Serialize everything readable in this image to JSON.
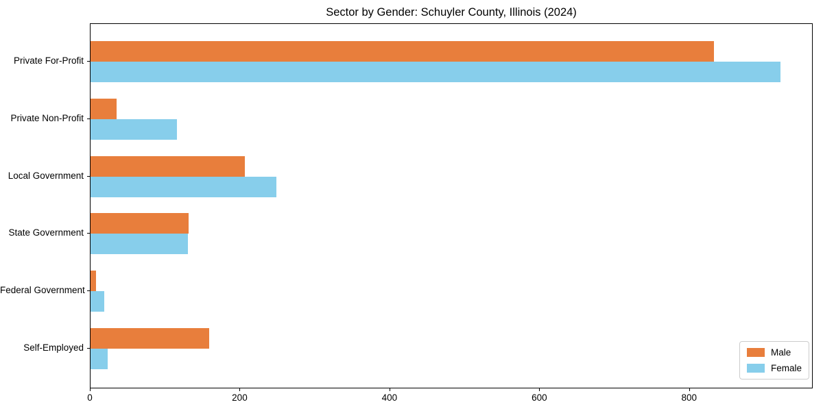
{
  "title": "Sector by Gender: Schuyler County, Illinois (2024)",
  "chart_data": {
    "type": "bar",
    "orientation": "horizontal",
    "title": "Sector by Gender: Schuyler County, Illinois (2024)",
    "xlabel": "",
    "ylabel": "",
    "categories": [
      "Private For-Profit",
      "Private Non-Profit",
      "Local Government",
      "State Government",
      "Federal Government",
      "Self-Employed"
    ],
    "series": [
      {
        "name": "Male",
        "color": "#e87e3c",
        "values": [
          832,
          35,
          206,
          131,
          7,
          158
        ]
      },
      {
        "name": "Female",
        "color": "#87ceeb",
        "values": [
          921,
          115,
          248,
          130,
          18,
          23
        ]
      }
    ],
    "xlim": [
      0,
      965
    ],
    "x_ticks": [
      0,
      200,
      400,
      600,
      800
    ],
    "grid": false,
    "legend_position": "lower right",
    "legend_labels": [
      "Male",
      "Female"
    ]
  }
}
